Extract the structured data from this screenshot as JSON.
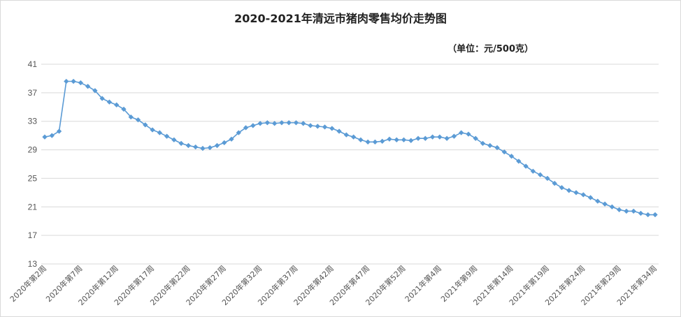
{
  "chart_data": {
    "type": "line",
    "title": "2020-2021年清远市猪肉零售均价走势图",
    "subtitle": "（单位：元/500克）",
    "xlabel": "",
    "ylabel": "",
    "ylim": [
      13,
      41
    ],
    "yticks": [
      "13",
      "17",
      "21",
      "25",
      "29",
      "33",
      "37",
      "41"
    ],
    "grid": true,
    "legend": "none",
    "line_color": "#5b9bd5",
    "x": [
      "2020年第2周",
      "2020年第3周",
      "2020年第4周",
      "2020年第5周",
      "2020年第6周",
      "2020年第7周",
      "2020年第8周",
      "2020年第9周",
      "2020年第10周",
      "2020年第11周",
      "2020年第12周",
      "2020年第13周",
      "2020年第14周",
      "2020年第15周",
      "2020年第16周",
      "2020年第17周",
      "2020年第18周",
      "2020年第19周",
      "2020年第20周",
      "2020年第21周",
      "2020年第22周",
      "2020年第23周",
      "2020年第24周",
      "2020年第25周",
      "2020年第26周",
      "2020年第27周",
      "2020年第28周",
      "2020年第29周",
      "2020年第30周",
      "2020年第31周",
      "2020年第32周",
      "2020年第33周",
      "2020年第34周",
      "2020年第35周",
      "2020年第36周",
      "2020年第37周",
      "2020年第38周",
      "2020年第39周",
      "2020年第40周",
      "2020年第41周",
      "2020年第42周",
      "2020年第43周",
      "2020年第44周",
      "2020年第45周",
      "2020年第46周",
      "2020年第47周",
      "2020年第48周",
      "2020年第49周",
      "2020年第50周",
      "2020年第51周",
      "2020年第52周",
      "2020年第53周",
      "2021年第1周",
      "2021年第2周",
      "2021年第3周",
      "2021年第4周",
      "2021年第5周",
      "2021年第6周",
      "2021年第7周",
      "2021年第8周",
      "2021年第9周",
      "2021年第10周",
      "2021年第11周",
      "2021年第12周",
      "2021年第13周",
      "2021年第14周",
      "2021年第15周",
      "2021年第16周",
      "2021年第17周",
      "2021年第18周",
      "2021年第19周",
      "2021年第20周",
      "2021年第21周",
      "2021年第22周",
      "2021年第23周",
      "2021年第24周",
      "2021年第25周",
      "2021年第26周",
      "2021年第27周",
      "2021年第28周",
      "2021年第29周",
      "2021年第30周",
      "2021年第31周",
      "2021年第32周",
      "2021年第33周",
      "2021年第34周"
    ],
    "xtick_labels": [
      "2020年第2周",
      "2020年第7周",
      "2020年第12周",
      "2020年第17周",
      "2020年第22周",
      "2020年第27周",
      "2020年第32周",
      "2020年第37周",
      "2020年第42周",
      "2020年第47周",
      "2020年第52周",
      "2021年第4周",
      "2021年第9周",
      "2021年第14周",
      "2021年第19周",
      "2021年第24周",
      "2021年第29周",
      "2021年第34周"
    ],
    "series": [
      {
        "name": "",
        "values": [
          30.8,
          31.0,
          31.6,
          38.6,
          38.6,
          38.4,
          37.9,
          37.3,
          36.2,
          35.7,
          35.3,
          34.7,
          33.6,
          33.2,
          32.5,
          31.8,
          31.4,
          30.9,
          30.4,
          29.9,
          29.6,
          29.4,
          29.2,
          29.3,
          29.6,
          30.0,
          30.5,
          31.4,
          32.1,
          32.4,
          32.7,
          32.8,
          32.7,
          32.8,
          32.8,
          32.8,
          32.7,
          32.4,
          32.3,
          32.2,
          32.0,
          31.6,
          31.1,
          30.8,
          30.4,
          30.1,
          30.1,
          30.2,
          30.5,
          30.4,
          30.4,
          30.3,
          30.6,
          30.6,
          30.8,
          30.8,
          30.6,
          30.9,
          31.4,
          31.2,
          30.6,
          29.9,
          29.6,
          29.3,
          28.7,
          28.1,
          27.4,
          26.7,
          26.0,
          25.5,
          25.0,
          24.3,
          23.7,
          23.3,
          23.0,
          22.7,
          22.3,
          21.8,
          21.4,
          21.0,
          20.6,
          20.4,
          20.4,
          20.1,
          19.9,
          19.9
        ]
      }
    ]
  }
}
